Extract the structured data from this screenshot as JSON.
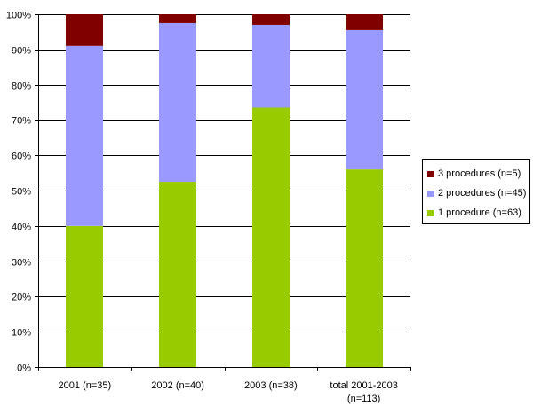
{
  "chart_data": {
    "type": "bar",
    "stacked": true,
    "categories": [
      "2001 (n=35)",
      "2002 (n=40)",
      "2003 (n=38)",
      "total 2001-2003 (n=113)"
    ],
    "series": [
      {
        "name": "1 procedure (n=63)",
        "color": "#99cc00",
        "values": [
          40,
          52.5,
          73.5,
          56
        ]
      },
      {
        "name": "2 procedures (n=45)",
        "color": "#9999ff",
        "values": [
          51,
          45,
          23.5,
          39.5
        ]
      },
      {
        "name": "3 procedures (n=5)",
        "color": "#800000",
        "values": [
          9,
          2.5,
          3,
          4.5
        ]
      }
    ],
    "ylim": [
      0,
      100
    ],
    "yticks": [
      "0%",
      "10%",
      "20%",
      "30%",
      "40%",
      "50%",
      "60%",
      "70%",
      "80%",
      "90%",
      "100%"
    ],
    "grid": true,
    "legend_position": "right"
  }
}
